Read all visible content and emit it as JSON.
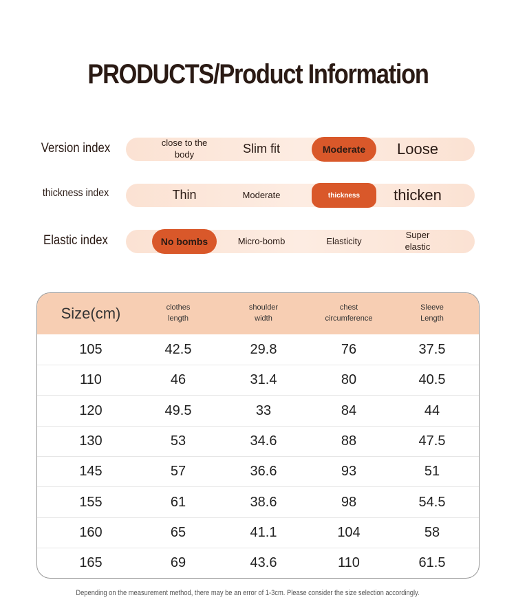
{
  "header": {
    "title": "PRODUCTS/Product Information"
  },
  "indices": [
    {
      "label": "Version index",
      "options": [
        "close to the body",
        "Slim fit",
        "Moderate",
        "Loose"
      ],
      "selected": 2
    },
    {
      "label": "thickness index",
      "options": [
        "Thin",
        "Moderate",
        "thickness",
        "thicken"
      ],
      "selected": 2
    },
    {
      "label": "Elastic index",
      "options": [
        "No bombs",
        "Micro-bomb",
        "Elasticity",
        "Super elastic"
      ],
      "selected": 0
    }
  ],
  "table": {
    "columns": [
      "Size(cm)",
      "clothes length",
      "shoulder width",
      "chest circumference",
      "Sleeve Length"
    ],
    "rows": [
      [
        105,
        42.5,
        29.8,
        76,
        37.5
      ],
      [
        110,
        46,
        31.4,
        80,
        40.5
      ],
      [
        120,
        49.5,
        33,
        84,
        44
      ],
      [
        130,
        53,
        34.6,
        88,
        47.5
      ],
      [
        145,
        57,
        36.6,
        93,
        51
      ],
      [
        155,
        61,
        38.6,
        98,
        54.5
      ],
      [
        160,
        65,
        41.1,
        104,
        58
      ],
      [
        165,
        69,
        43.6,
        110,
        61.5
      ]
    ]
  },
  "footnote": "Depending on the measurement method, there may be an error of 1-3cm. Please consider the size selection accordingly."
}
